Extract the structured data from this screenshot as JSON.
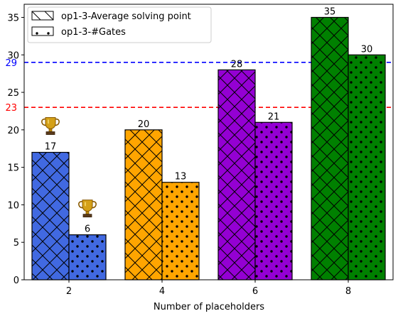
{
  "chart_data": {
    "type": "bar",
    "categories": [
      "2",
      "4",
      "6",
      "8"
    ],
    "series": [
      {
        "name": "op1-3-Average solving point",
        "values": [
          17,
          20,
          28,
          35
        ],
        "hatch": "cross"
      },
      {
        "name": "op1-3-#Gates",
        "values": [
          6,
          13,
          21,
          30
        ],
        "hatch": "dots"
      }
    ],
    "category_colors": [
      "#4169e1",
      "#ffa500",
      "#9400d3",
      "#008000"
    ],
    "xlabel": "Number of placeholders",
    "ylabel": "",
    "ylim": [
      0,
      36.75
    ],
    "yticks": [
      0,
      5,
      10,
      15,
      20,
      25,
      30,
      35
    ],
    "reference_lines": [
      {
        "value": 29,
        "label": "29",
        "color": "#0000ff",
        "style": "dashed"
      },
      {
        "value": 23,
        "label": "23",
        "color": "#ff0000",
        "style": "dashed"
      }
    ],
    "trophies": [
      {
        "category": "2",
        "series": 0,
        "icon": "trophy-icon"
      },
      {
        "category": "2",
        "series": 1,
        "icon": "trophy-icon"
      }
    ],
    "legend": "top-left",
    "grid": false
  }
}
